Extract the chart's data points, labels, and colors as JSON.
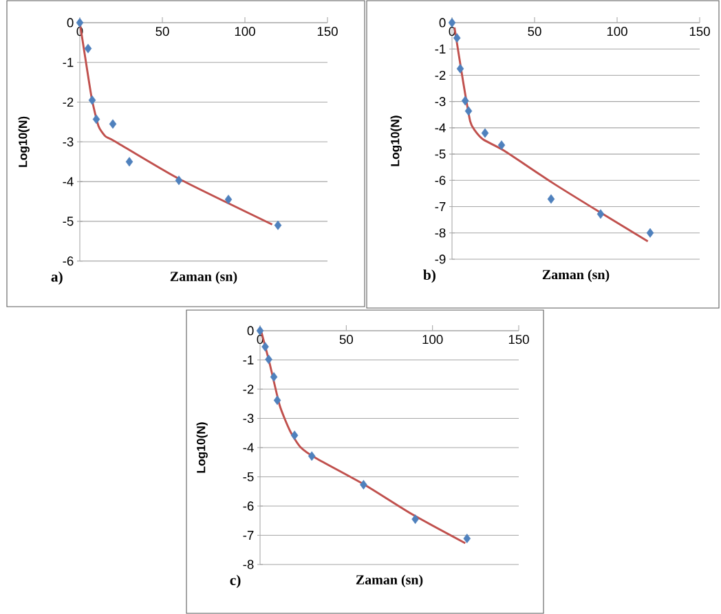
{
  "chart_data": [
    {
      "type": "scatter",
      "xlabel": "Zaman (sn)",
      "ylabel": "Log10(N)",
      "annotations": [
        "a)"
      ],
      "xlim": [
        0,
        150
      ],
      "xticks": [
        0,
        50,
        100,
        150
      ],
      "ylim": [
        -6,
        0
      ],
      "yticks": [
        -6,
        -5,
        -4,
        -3,
        -2,
        -1,
        0
      ],
      "grid": "y",
      "series": [
        {
          "marker": "diamond",
          "color": "#4f81bd",
          "x": [
            0,
            5,
            7.5,
            10,
            20,
            30,
            60,
            90,
            120
          ],
          "values": [
            0,
            -0.65,
            -1.95,
            -2.43,
            -2.55,
            -3.5,
            -3.97,
            -4.45,
            -5.1
          ]
        },
        {
          "type": "line",
          "marker": "none",
          "color": "#c0504d",
          "x": [
            0,
            2.4,
            7.2,
            11.3,
            15.5,
            21,
            60,
            116.5
          ],
          "values": [
            0,
            -0.64,
            -1.9,
            -2.6,
            -2.86,
            -2.98,
            -3.93,
            -5.08
          ]
        }
      ]
    },
    {
      "type": "scatter",
      "xlabel": "Zaman (sn)",
      "ylabel": "Log10(N)",
      "annotations": [
        "b)"
      ],
      "xlim": [
        0,
        150
      ],
      "xticks": [
        0,
        50,
        100,
        150
      ],
      "ylim": [
        -9,
        0
      ],
      "yticks": [
        -9,
        -8,
        -7,
        -6,
        -5,
        -4,
        -3,
        -2,
        -1,
        0
      ],
      "grid": "y",
      "series": [
        {
          "marker": "diamond",
          "color": "#4f81bd",
          "x": [
            0,
            3,
            5,
            8,
            10,
            20,
            30,
            60,
            90,
            120
          ],
          "values": [
            0,
            -0.58,
            -1.75,
            -2.97,
            -3.36,
            -4.2,
            -4.66,
            -6.71,
            -7.28,
            -8.0
          ]
        },
        {
          "type": "line",
          "marker": "none",
          "color": "#c0504d",
          "x": [
            1.5,
            6.8,
            11,
            13.8,
            19,
            31.8,
            61,
            90,
            118.6
          ],
          "values": [
            -0.18,
            -2.27,
            -3.75,
            -4.1,
            -4.45,
            -4.88,
            -6.1,
            -7.23,
            -8.32
          ]
        }
      ]
    },
    {
      "type": "scatter",
      "xlabel": "Zaman (sn)",
      "ylabel": "Log10(N)",
      "annotations": [
        "c)"
      ],
      "xlim": [
        0,
        150
      ],
      "xticks": [
        0,
        50,
        100,
        150
      ],
      "ylim": [
        -8,
        0
      ],
      "yticks": [
        -8,
        -7,
        -6,
        -5,
        -4,
        -3,
        -2,
        -1,
        0
      ],
      "grid": "y",
      "series": [
        {
          "marker": "diamond",
          "color": "#4f81bd",
          "x": [
            0,
            3,
            5,
            8,
            10,
            20,
            30,
            60,
            90,
            120
          ],
          "values": [
            0,
            -0.55,
            -0.98,
            -1.58,
            -2.38,
            -3.58,
            -4.29,
            -5.27,
            -6.45,
            -7.11
          ]
        },
        {
          "type": "line",
          "marker": "none",
          "color": "#c0504d",
          "x": [
            0.8,
            5.4,
            11.4,
            17.4,
            23.4,
            32.7,
            60.6,
            88.4,
            119
          ],
          "values": [
            -0.05,
            -1.08,
            -2.56,
            -3.43,
            -3.98,
            -4.37,
            -5.27,
            -6.29,
            -7.27
          ]
        }
      ]
    }
  ]
}
